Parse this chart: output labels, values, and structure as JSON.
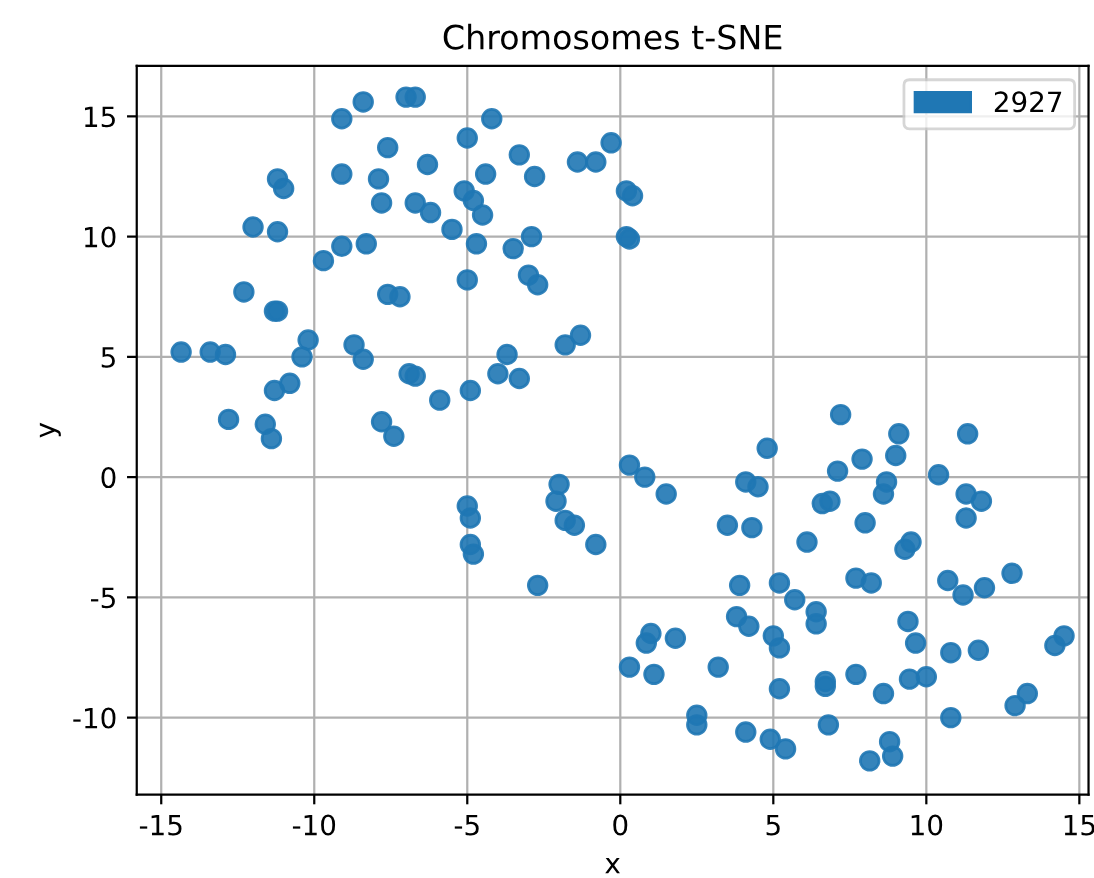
{
  "chart_data": {
    "type": "scatter",
    "title": "Chromosomes t-SNE",
    "xlabel": "x",
    "ylabel": "y",
    "xlim": [
      -15.8,
      15.3
    ],
    "ylim": [
      -13.2,
      17.1
    ],
    "xticks": [
      -15,
      -10,
      -5,
      0,
      5,
      10,
      15
    ],
    "yticks": [
      -10,
      -5,
      0,
      5,
      10,
      15
    ],
    "grid": true,
    "legend": "top right",
    "marker": "circle",
    "series": [
      {
        "name": "2927",
        "color": "#1f77b4",
        "x": [
          -14.35,
          -13.4,
          -12.9,
          -12.8,
          -12.3,
          -12.0,
          -11.6,
          -11.4,
          -11.3,
          -11.2,
          -11.3,
          -11.2,
          -11.0,
          -11.2,
          -10.8,
          -10.4,
          -10.2,
          -9.7,
          -9.1,
          -9.1,
          -9.1,
          -8.7,
          -8.4,
          -8.4,
          -8.3,
          -7.9,
          -7.8,
          -7.8,
          -7.6,
          -7.6,
          -7.4,
          -7.2,
          -7.0,
          -6.7,
          -6.9,
          -6.7,
          -6.7,
          -6.3,
          -6.2,
          -5.9,
          -5.5,
          -5.1,
          -5.0,
          -5.0,
          -4.9,
          -4.8,
          -4.7,
          -4.5,
          -4.4,
          -4.2,
          -4.0,
          -3.7,
          -3.5,
          -3.3,
          -3.3,
          -3.0,
          -2.9,
          -2.8,
          -2.7,
          -1.8,
          -1.4,
          -1.3,
          -0.8,
          -0.3,
          0.2,
          0.4,
          0.2,
          0.3,
          -5.0,
          -4.9,
          -4.9,
          -4.8,
          -2.7,
          -2.0,
          -2.1,
          -1.8,
          -1.5,
          -0.8,
          0.3,
          0.8,
          1.5,
          1.0,
          0.85,
          1.8,
          0.3,
          1.1,
          2.5,
          2.5,
          3.2,
          3.5,
          4.3,
          3.9,
          3.8,
          4.2,
          4.1,
          4.1,
          4.5,
          4.8,
          5.0,
          5.2,
          5.2,
          4.9,
          5.4,
          5.2,
          5.7,
          6.1,
          6.4,
          6.4,
          6.6,
          6.85,
          6.7,
          6.7,
          6.8,
          7.1,
          7.2,
          7.7,
          7.7,
          7.9,
          8.0,
          8.2,
          8.15,
          8.6,
          8.7,
          8.6,
          8.8,
          8.9,
          9.0,
          9.1,
          9.3,
          9.5,
          9.4,
          9.65,
          9.45,
          10.0,
          10.4,
          10.7,
          10.8,
          10.8,
          11.2,
          11.3,
          11.3,
          11.35,
          11.8,
          11.7,
          11.9,
          12.8,
          12.9,
          13.3,
          14.2,
          14.5
        ],
        "values": [
          5.2,
          5.2,
          5.1,
          2.4,
          7.7,
          10.4,
          2.2,
          1.6,
          6.9,
          6.9,
          3.6,
          12.4,
          12.0,
          10.2,
          3.9,
          5.0,
          5.7,
          9.0,
          14.9,
          12.6,
          9.6,
          5.5,
          4.9,
          15.6,
          9.7,
          12.4,
          11.4,
          2.3,
          13.7,
          7.6,
          1.7,
          7.5,
          15.8,
          15.8,
          4.3,
          4.2,
          11.4,
          13.0,
          11.0,
          3.2,
          10.3,
          11.9,
          14.1,
          8.2,
          3.6,
          11.5,
          9.7,
          10.9,
          12.6,
          14.9,
          4.3,
          5.1,
          9.5,
          4.1,
          13.4,
          8.4,
          10.0,
          12.5,
          8.0,
          5.5,
          13.1,
          5.9,
          13.1,
          13.9,
          11.9,
          11.7,
          10.0,
          9.9,
          -1.2,
          -1.7,
          -2.8,
          -3.2,
          -4.5,
          -0.3,
          -1.0,
          -1.8,
          -2.0,
          -2.8,
          0.5,
          0.0,
          -0.7,
          -6.5,
          -6.9,
          -6.7,
          -7.9,
          -8.2,
          -9.9,
          -10.3,
          -7.9,
          -2.0,
          -2.1,
          -4.5,
          -5.8,
          -6.2,
          -10.6,
          -0.2,
          -0.4,
          1.2,
          -6.6,
          -7.1,
          -8.8,
          -10.9,
          -11.3,
          -4.4,
          -5.1,
          -2.7,
          -5.6,
          -6.1,
          -1.1,
          -1.0,
          -8.5,
          -8.7,
          -10.3,
          0.25,
          2.6,
          -4.2,
          -8.2,
          0.75,
          -1.9,
          -4.4,
          -11.8,
          -0.7,
          -0.2,
          -9.0,
          -11.0,
          -11.6,
          0.9,
          1.8,
          -3.0,
          -2.7,
          -6.0,
          -6.9,
          -8.4,
          -8.3,
          0.1,
          -4.3,
          -7.3,
          -10.0,
          -4.9,
          -0.7,
          -1.7,
          1.8,
          -1.0,
          -7.2,
          -4.6,
          -4.0,
          -9.5,
          -9.0,
          -7.0,
          -6.6
        ]
      }
    ]
  }
}
